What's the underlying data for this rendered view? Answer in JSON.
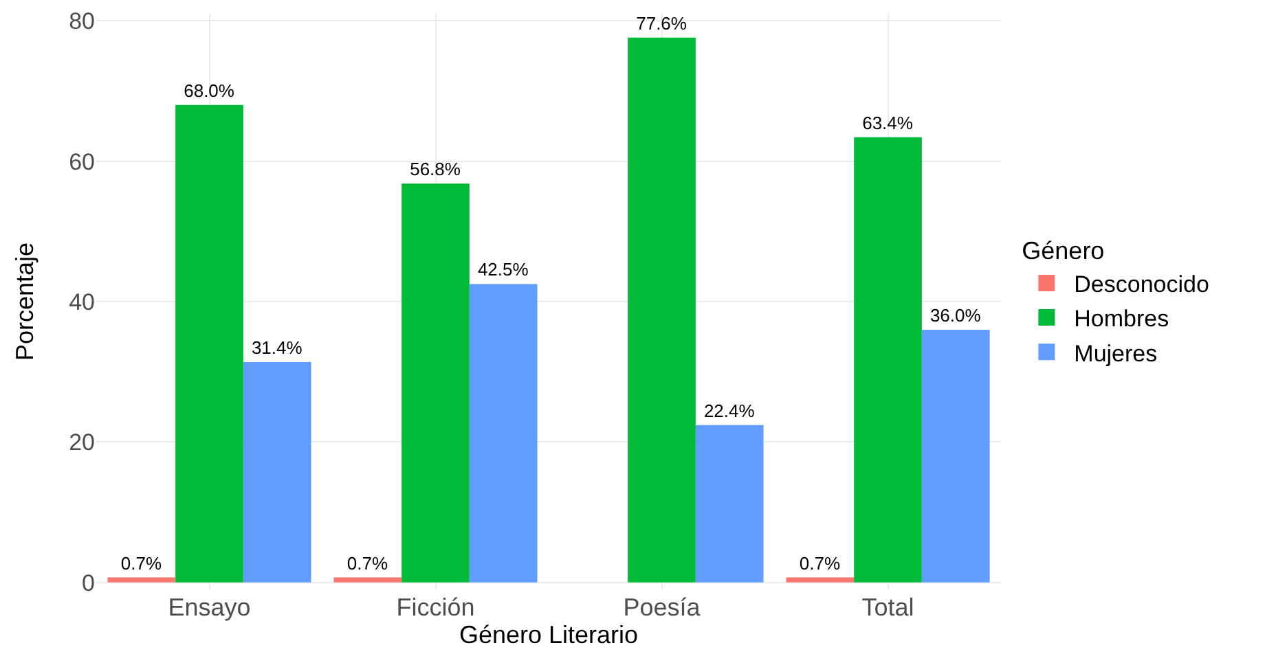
{
  "chart_data": {
    "type": "bar",
    "xlabel": "Género Literario",
    "ylabel": "Porcentaje",
    "legend_title": "Género",
    "categories": [
      "Ensayo",
      "Ficción",
      "Poesía",
      "Total"
    ],
    "series": [
      {
        "name": "Desconocido",
        "color": "#f8766d",
        "values": [
          0.7,
          0.7,
          null,
          0.7
        ],
        "value_labels": [
          "0.7%",
          "0.7%",
          null,
          "0.7%"
        ]
      },
      {
        "name": "Hombres",
        "color": "#00ba38",
        "values": [
          68.0,
          56.8,
          77.6,
          63.4
        ],
        "value_labels": [
          "68.0%",
          "56.8%",
          "77.6%",
          "63.4%"
        ]
      },
      {
        "name": "Mujeres",
        "color": "#619cff",
        "values": [
          31.4,
          42.5,
          22.4,
          36.0
        ],
        "value_labels": [
          "31.4%",
          "42.5%",
          "22.4%",
          "36.0%"
        ]
      }
    ],
    "ylim": [
      -1,
      81
    ],
    "yticks": [
      0,
      20,
      40,
      60,
      80
    ],
    "grid": true,
    "legend": "right"
  }
}
